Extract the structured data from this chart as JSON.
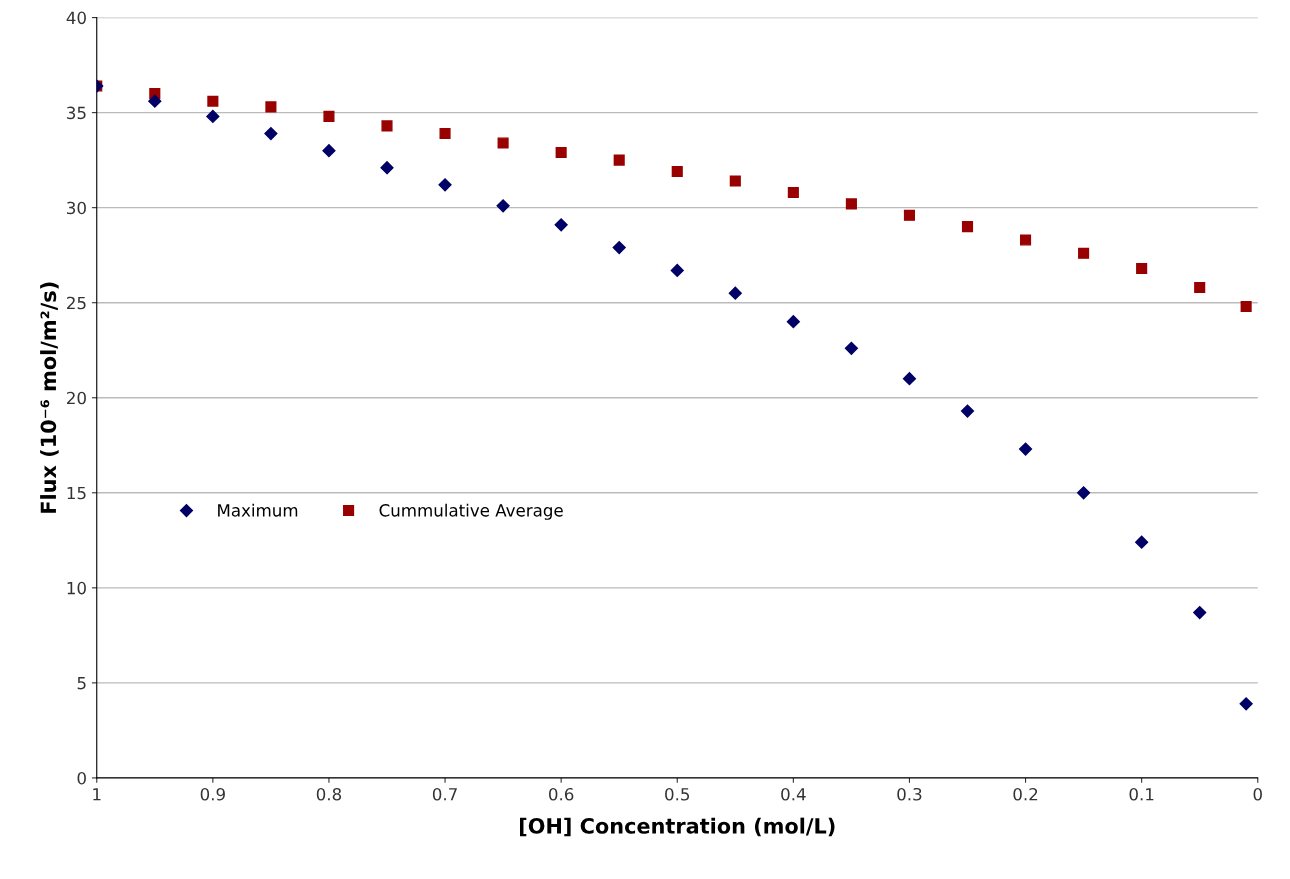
{
  "chart_data": {
    "type": "scatter",
    "xlabel": "[OH] Concentration (mol/L)",
    "ylabel": "Flux (10⁻⁶ mol/m²/s)",
    "x": [
      1,
      0.95,
      0.9,
      0.85,
      0.8,
      0.75,
      0.7,
      0.65,
      0.6,
      0.55,
      0.5,
      0.45,
      0.4,
      0.35,
      0.3,
      0.25,
      0.2,
      0.15,
      0.1,
      0.05,
      0.01
    ],
    "series": [
      {
        "name": "Maximum",
        "color": "#000066",
        "marker": "diamond",
        "values": [
          36.4,
          35.6,
          34.8,
          33.9,
          33.0,
          32.1,
          31.2,
          30.1,
          29.1,
          27.9,
          26.7,
          25.5,
          24.0,
          22.6,
          21.0,
          19.3,
          17.3,
          15.0,
          12.4,
          8.7,
          3.9
        ]
      },
      {
        "name": "Cummulative Average",
        "color": "#990000",
        "marker": "square",
        "values": [
          36.4,
          36.0,
          35.6,
          35.3,
          34.8,
          34.3,
          33.9,
          33.4,
          32.9,
          32.5,
          31.9,
          31.4,
          30.8,
          30.2,
          29.6,
          29.0,
          28.3,
          27.6,
          26.8,
          25.8,
          24.8
        ]
      }
    ],
    "xlim": [
      1,
      0
    ],
    "xticks": [
      1,
      0.9,
      0.8,
      0.7,
      0.6,
      0.5,
      0.4,
      0.3,
      0.2,
      0.1,
      0
    ],
    "ylim": [
      0,
      40
    ],
    "yticks": [
      0,
      5,
      10,
      15,
      20,
      25,
      30,
      35,
      40
    ],
    "grid": "y",
    "legend": "center left"
  }
}
